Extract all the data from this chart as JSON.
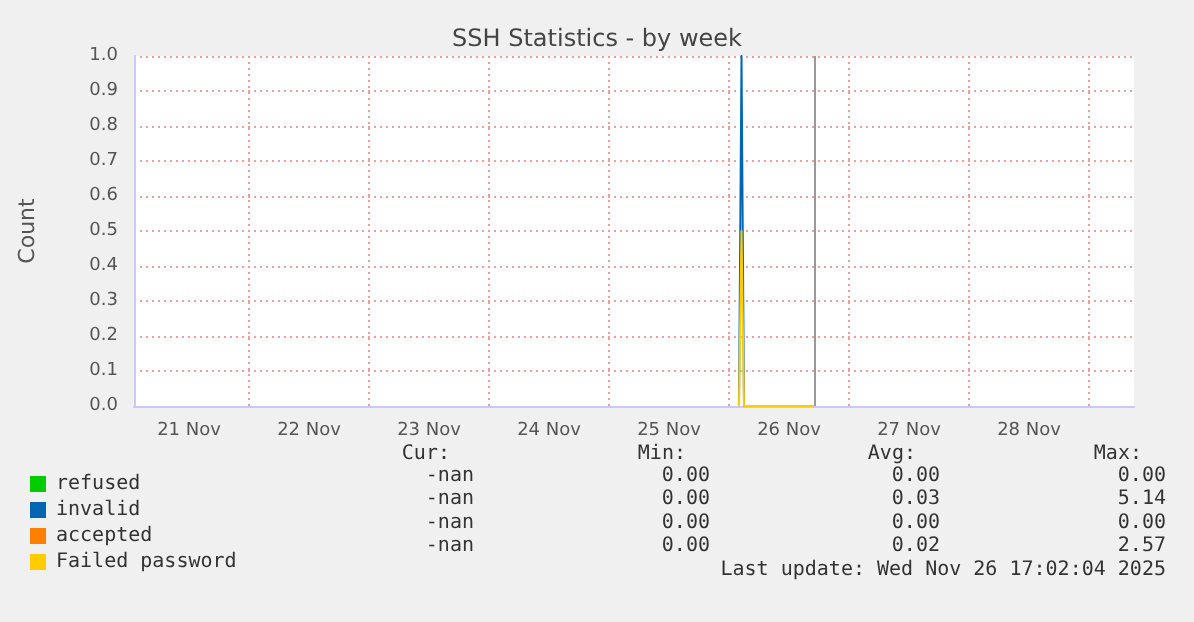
{
  "chart_data": {
    "type": "line",
    "title": "SSH Statistics - by week",
    "ylabel": "Count",
    "x": [
      "2025-11-26T02:00",
      "2025-11-26T02:30",
      "2025-11-26T03:00",
      "2025-11-26T17:00"
    ],
    "series": [
      {
        "name": "refused",
        "color": "#00cc00",
        "values": [
          null,
          null,
          null,
          null
        ]
      },
      {
        "name": "invalid",
        "color": "#0066b3",
        "values": [
          0,
          1.0,
          0,
          0
        ]
      },
      {
        "name": "accepted",
        "color": "#ff8000",
        "values": [
          null,
          null,
          null,
          null
        ]
      },
      {
        "name": "Failed password",
        "color": "#ffcc00",
        "values": [
          0,
          0.5,
          0,
          0
        ]
      }
    ],
    "xlim": [
      "2025-11-21T01:00",
      "2025-11-29T09:00"
    ],
    "xticks": [
      {
        "value": "2025-11-21T12:00",
        "label": "21 Nov"
      },
      {
        "value": "2025-11-22T12:00",
        "label": "22 Nov"
      },
      {
        "value": "2025-11-23T12:00",
        "label": "23 Nov"
      },
      {
        "value": "2025-11-24T12:00",
        "label": "24 Nov"
      },
      {
        "value": "2025-11-25T12:00",
        "label": "25 Nov"
      },
      {
        "value": "2025-11-26T12:00",
        "label": "26 Nov"
      },
      {
        "value": "2025-11-27T12:00",
        "label": "27 Nov"
      },
      {
        "value": "2025-11-28T12:00",
        "label": "28 Nov"
      }
    ],
    "ylim": [
      0,
      1.0
    ],
    "yticks": [
      {
        "value": 0,
        "label": "0.0"
      },
      {
        "value": 0.1,
        "label": "0.1"
      },
      {
        "value": 0.2,
        "label": "0.2"
      },
      {
        "value": 0.3,
        "label": "0.3"
      },
      {
        "value": 0.4,
        "label": "0.4"
      },
      {
        "value": 0.5,
        "label": "0.5"
      },
      {
        "value": 0.6,
        "label": "0.6"
      },
      {
        "value": 0.7,
        "label": "0.7"
      },
      {
        "value": 0.8,
        "label": "0.8"
      },
      {
        "value": 0.9,
        "label": "0.9"
      },
      {
        "value": 1.0,
        "label": "1.0"
      }
    ],
    "ref_lines": [
      {
        "axis": "x",
        "value": "2025-11-26T17:02",
        "label": null,
        "color": "#999999"
      }
    ],
    "grid": true,
    "legend": "bottom left",
    "marker": "none",
    "annotations": [
      "Cur:",
      "Min:",
      "Avg:",
      "Max:",
      "-nan",
      "0.00",
      "0.00",
      "0.00",
      "-nan",
      "0.00",
      "0.03",
      "5.14",
      "-nan",
      "0.00",
      "0.00",
      "0.00",
      "-nan",
      "0.00",
      "0.02",
      "2.57",
      "Last update: Wed Nov 26 17:02:04 2025"
    ]
  }
}
